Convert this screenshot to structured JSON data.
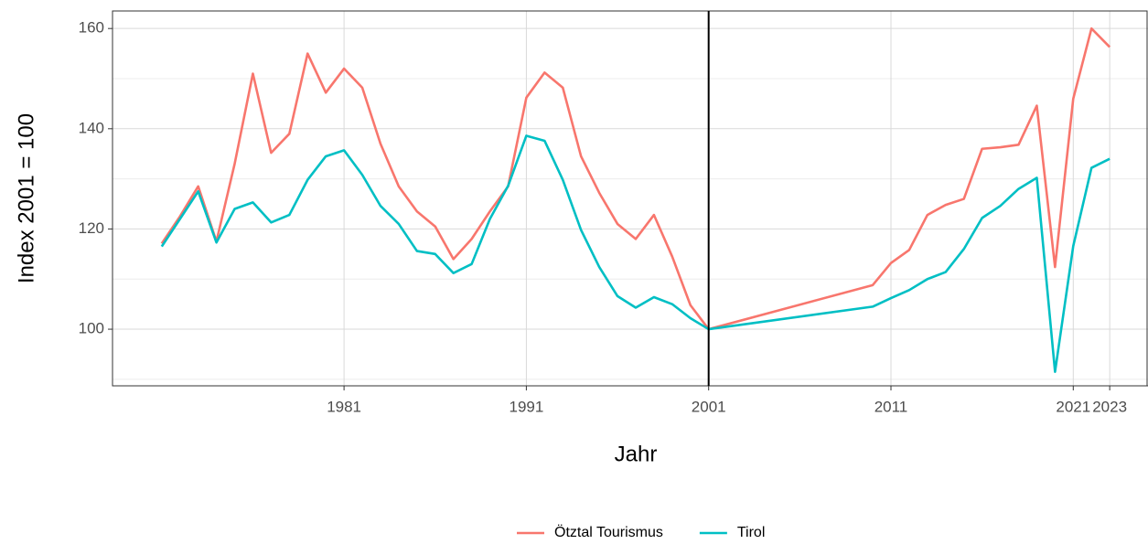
{
  "chart_data": {
    "type": "line",
    "x_label": "Jahr",
    "y_label": "Index 2001 = 100",
    "x": [
      1971,
      1972,
      1973,
      1974,
      1975,
      1976,
      1977,
      1978,
      1979,
      1980,
      1981,
      1982,
      1983,
      1984,
      1985,
      1986,
      1987,
      1988,
      1989,
      1990,
      1991,
      1992,
      1993,
      1994,
      1995,
      1996,
      1997,
      1998,
      1999,
      2000,
      2001,
      2010,
      2011,
      2012,
      2013,
      2014,
      2015,
      2016,
      2017,
      2018,
      2019,
      2020,
      2021,
      2022,
      2023
    ],
    "series": [
      {
        "name": "Ötztal Tourismus",
        "color": "#f8766d",
        "values": [
          117.1,
          122.5,
          128.5,
          117.5,
          133,
          151,
          135.2,
          139,
          155,
          147.2,
          152,
          148.2,
          137,
          128.5,
          123.5,
          120.5,
          114,
          118,
          123.5,
          128.5,
          146.2,
          151.2,
          148.2,
          134.5,
          127.2,
          121,
          118,
          122.8,
          114.5,
          104.8,
          100,
          108.8,
          113.2,
          115.8,
          122.8,
          124.8,
          126,
          136,
          136.3,
          136.8,
          144.6,
          112.4,
          146,
          160,
          156.3
        ]
      },
      {
        "name": "Tirol",
        "color": "#00bfc4",
        "values": [
          116.5,
          122,
          127.5,
          117.3,
          124,
          125.3,
          121.3,
          122.8,
          129.8,
          134.5,
          135.7,
          130.8,
          124.6,
          121,
          115.6,
          115,
          111.2,
          113,
          122,
          128.6,
          138.6,
          137.6,
          129.8,
          119.8,
          112.4,
          106.6,
          104.3,
          106.4,
          105,
          102.2,
          100,
          104.5,
          106.2,
          107.8,
          110,
          111.4,
          116,
          122.2,
          124.6,
          128,
          130.2,
          91.5,
          116.6,
          132.2,
          134
        ]
      }
    ],
    "xlim": [
      1968.3,
      2025.1
    ],
    "xticks": [
      1981,
      1991,
      2001,
      2011,
      2021,
      2023
    ],
    "ylim": [
      88.7,
      163.5
    ],
    "yticks": [
      100,
      120,
      140,
      160
    ],
    "vline": 2001,
    "grid": true,
    "legend": "bottom"
  }
}
